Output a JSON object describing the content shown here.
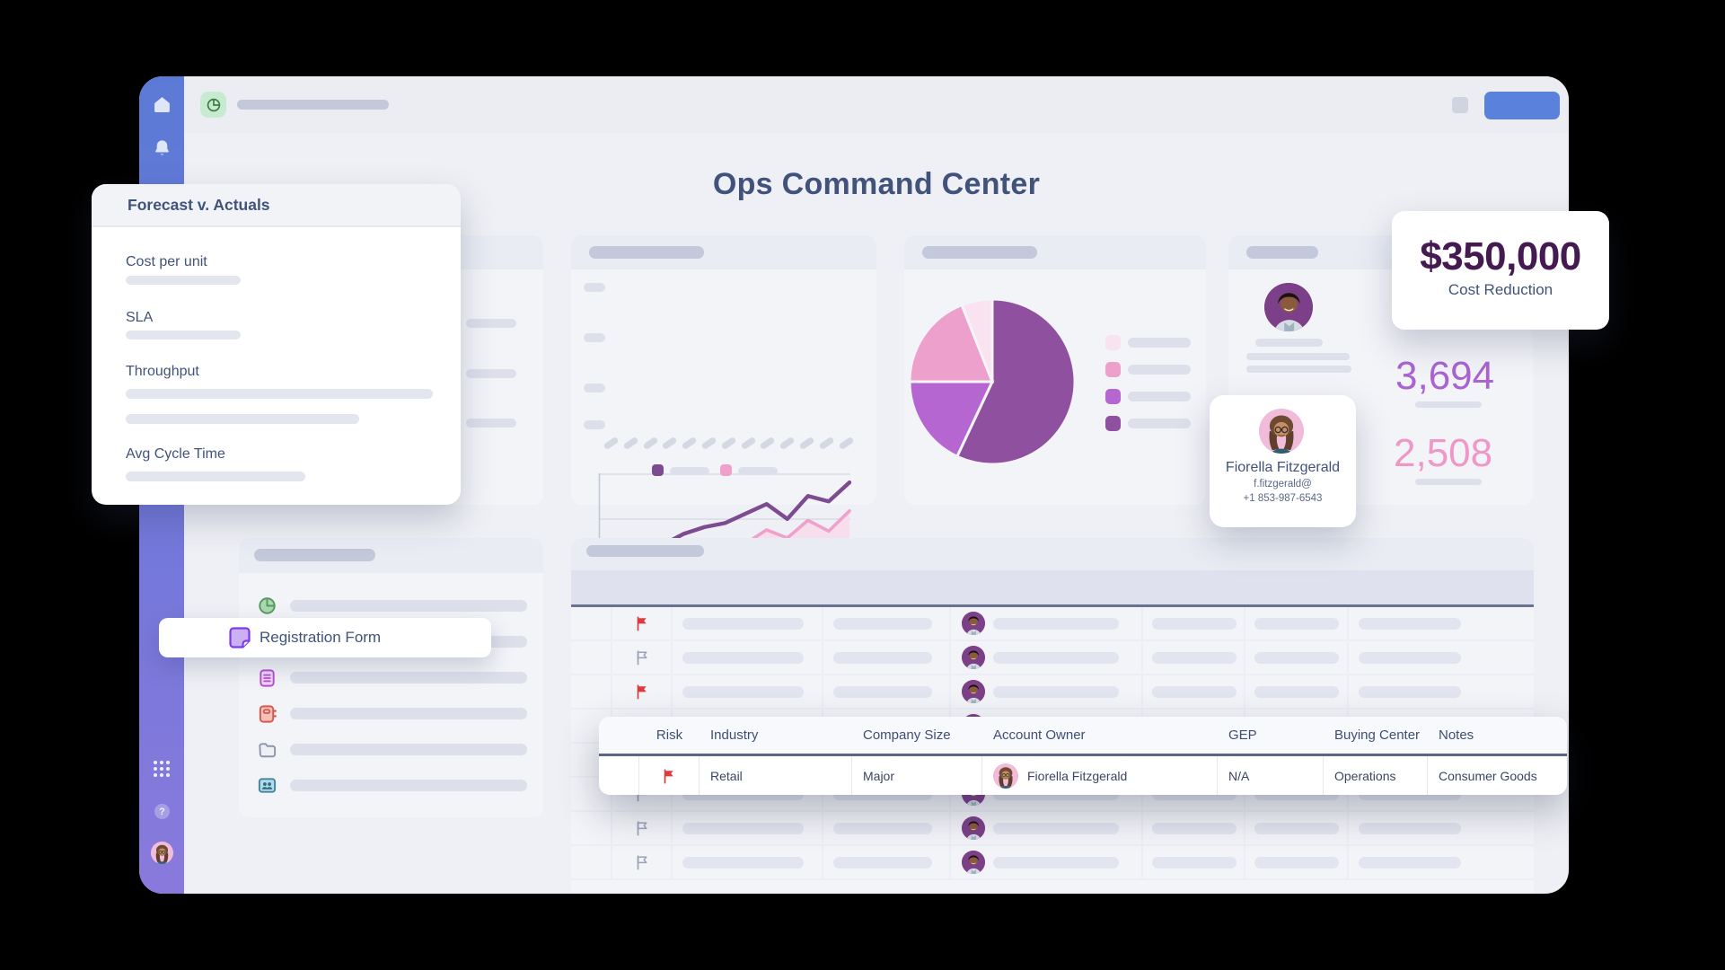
{
  "header": {
    "title": "Ops Command Center"
  },
  "forecast_panel": {
    "title": "Forecast v. Actuals",
    "metrics": [
      {
        "label": "Cost per unit"
      },
      {
        "label": "SLA"
      },
      {
        "label": "Throughput"
      },
      {
        "label": "Avg Cycle Time"
      }
    ]
  },
  "registration_overlay": {
    "label": "Registration Form"
  },
  "kpi_card": {
    "value": "$350,000",
    "label": "Cost Reduction"
  },
  "stat_values": {
    "purple": "3,694",
    "pink": "2,508"
  },
  "contact_card": {
    "name": "Fiorella Fitzgerald",
    "email": "f.fitzgerald@",
    "phone": "+1 853-987-6543"
  },
  "popup_row": {
    "headers": [
      "Risk",
      "Industry",
      "Company Size",
      "Account Owner",
      "GEP",
      "Buying Center",
      "Notes"
    ],
    "row": {
      "risk_flag": "red",
      "industry": "Retail",
      "company_size": "Major",
      "account_owner": "Fiorella Fitzgerald",
      "gep": "N/A",
      "buying_center": "Operations",
      "notes": "Consumer Goods"
    }
  },
  "main_table": {
    "rows": [
      {
        "flag": "red"
      },
      {
        "flag": "gray"
      },
      {
        "flag": "red"
      },
      {
        "flag": "gray"
      },
      {
        "flag": "gray"
      },
      {
        "flag": "gray"
      },
      {
        "flag": "gray"
      },
      {
        "flag": "gray"
      }
    ]
  },
  "chart_data": [
    {
      "type": "line",
      "title": "",
      "series": [
        {
          "name": "series-dark",
          "color": "#7c4b91",
          "values": [
            33,
            29,
            38,
            48,
            56,
            61,
            64,
            71,
            78,
            67,
            84,
            80,
            94
          ]
        },
        {
          "name": "series-pink",
          "color": "#f0a1cb",
          "area_fill": "#f7dcec",
          "values": [
            27,
            20,
            33,
            30,
            37,
            42,
            46,
            49,
            59,
            53,
            66,
            58,
            73
          ]
        }
      ],
      "x_tick_count": 13,
      "y_tick_count": 4,
      "ylim": [
        0,
        100
      ],
      "grid": true,
      "legend_position": "bottom",
      "tick_labels": "placeholder"
    },
    {
      "type": "pie",
      "slices": [
        {
          "name": "slice-1",
          "color": "#8e509f",
          "value": 57
        },
        {
          "name": "slice-2",
          "color": "#b666d1",
          "value": 18
        },
        {
          "name": "slice-3",
          "color": "#eda0cb",
          "value": 19
        },
        {
          "name": "slice-4",
          "color": "#f9e3f1",
          "value": 6
        }
      ],
      "start_angle_deg": 0,
      "legend_position": "right",
      "legend_order": [
        "slice-4",
        "slice-3",
        "slice-2",
        "slice-1"
      ]
    }
  ],
  "icons": {
    "sidebar": [
      "home-icon",
      "bell-icon",
      "apps-grid-icon",
      "help-icon",
      "user-avatar"
    ],
    "topbar": [
      "pie-chart-icon"
    ],
    "list": [
      "pie-chart-icon",
      "form-doc-icon",
      "clipboard-icon",
      "address-book-icon",
      "folder-icon",
      "contacts-icon"
    ],
    "table": [
      "flag-icon"
    ]
  },
  "colors": {
    "sidebar_top": "#5b7ad6",
    "sidebar_bottom": "#8a79dd",
    "accent_button": "#5a82dd",
    "title_text": "#41527b",
    "kpi_value": "#451a51",
    "stat_purple": "#a964d2",
    "stat_pink": "#ef97c6",
    "line_dark": "#7c4b91",
    "line_pink": "#f0a1cb",
    "pie_dark": "#8e509f",
    "pie_medium": "#b666d1",
    "pie_pink": "#eda0cb",
    "pie_light": "#f9e3f1",
    "flag_red": "#da3b3e",
    "flag_gray": "#9aa2b6",
    "green_tile": "#c6ebd0"
  }
}
